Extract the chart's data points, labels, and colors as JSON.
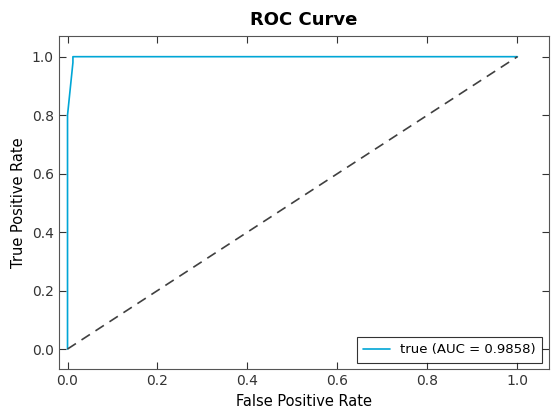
{
  "title": "ROC Curve",
  "xlabel": "False Positive Rate",
  "ylabel": "True Positive Rate",
  "legend_label": "true (AUC = 0.9858)",
  "roc_color": "#00A6D6",
  "diag_color": "#404040",
  "xlim": [
    -0.02,
    1.07
  ],
  "ylim": [
    -0.07,
    1.07
  ],
  "background_color": "#ffffff",
  "title_fontsize": 13,
  "label_fontsize": 10.5,
  "tick_fontsize": 10,
  "roc_x": [
    0.0,
    0.0,
    0.0,
    0.0,
    0.0,
    0.012,
    0.012,
    0.012,
    1.0
  ],
  "roc_y": [
    0.0,
    0.06,
    0.4,
    0.62,
    0.8,
    0.98,
    1.0,
    1.0,
    1.0
  ],
  "xticks": [
    0,
    0.2,
    0.4,
    0.6,
    0.8,
    1.0
  ],
  "yticks": [
    0,
    0.2,
    0.4,
    0.6,
    0.8,
    1.0
  ]
}
